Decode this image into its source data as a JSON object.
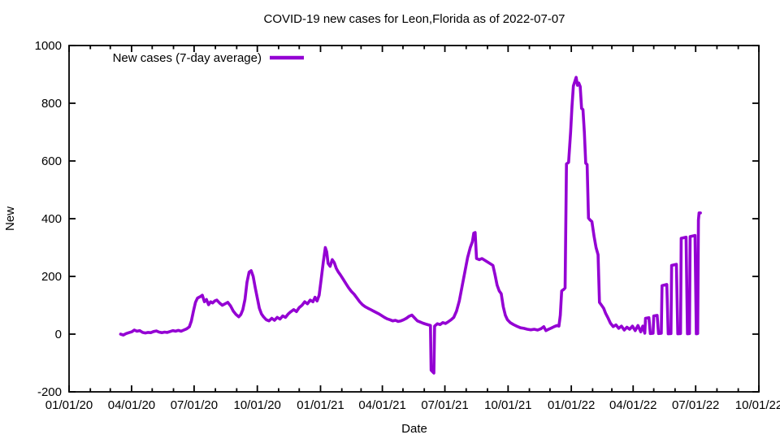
{
  "chart_data": {
    "type": "line",
    "title": "COVID-19 new cases for Leon,Florida as of 2022-07-07",
    "xlabel": "Date",
    "ylabel": "New",
    "grid": false,
    "legend": {
      "label": "New cases (7-day average)",
      "position": "top-left-inside"
    },
    "line_color": "#9400d3",
    "axis_color": "#000000",
    "ylim": [
      -200,
      1000
    ],
    "xlim": [
      "2020-01-01",
      "2022-10-01"
    ],
    "y_ticks": [
      -200,
      0,
      200,
      400,
      600,
      800,
      1000
    ],
    "x_ticks": [
      {
        "date": "2020-01-01",
        "label": "01/01/20"
      },
      {
        "date": "2020-04-01",
        "label": "04/01/20"
      },
      {
        "date": "2020-07-01",
        "label": "07/01/20"
      },
      {
        "date": "2020-10-01",
        "label": "10/01/20"
      },
      {
        "date": "2021-01-01",
        "label": "01/01/21"
      },
      {
        "date": "2021-04-01",
        "label": "04/01/21"
      },
      {
        "date": "2021-07-01",
        "label": "07/01/21"
      },
      {
        "date": "2021-10-01",
        "label": "10/01/21"
      },
      {
        "date": "2022-01-01",
        "label": "01/01/22"
      },
      {
        "date": "2022-04-01",
        "label": "04/01/22"
      },
      {
        "date": "2022-07-01",
        "label": "07/01/22"
      },
      {
        "date": "2022-10-01",
        "label": "10/01/22"
      }
    ],
    "series": [
      {
        "name": "New cases (7-day average)",
        "points": [
          [
            "2020-03-16",
            0
          ],
          [
            "2020-03-20",
            -3
          ],
          [
            "2020-03-24",
            2
          ],
          [
            "2020-03-28",
            5
          ],
          [
            "2020-04-01",
            8
          ],
          [
            "2020-04-05",
            14
          ],
          [
            "2020-04-09",
            10
          ],
          [
            "2020-04-13",
            12
          ],
          [
            "2020-04-17",
            6
          ],
          [
            "2020-04-21",
            4
          ],
          [
            "2020-04-25",
            6
          ],
          [
            "2020-04-29",
            5
          ],
          [
            "2020-05-03",
            9
          ],
          [
            "2020-05-07",
            11
          ],
          [
            "2020-05-11",
            7
          ],
          [
            "2020-05-15",
            5
          ],
          [
            "2020-05-19",
            7
          ],
          [
            "2020-05-23",
            6
          ],
          [
            "2020-05-27",
            9
          ],
          [
            "2020-05-31",
            12
          ],
          [
            "2020-06-04",
            10
          ],
          [
            "2020-06-08",
            13
          ],
          [
            "2020-06-12",
            10
          ],
          [
            "2020-06-16",
            14
          ],
          [
            "2020-06-20",
            18
          ],
          [
            "2020-06-24",
            25
          ],
          [
            "2020-06-27",
            45
          ],
          [
            "2020-06-30",
            80
          ],
          [
            "2020-07-03",
            110
          ],
          [
            "2020-07-06",
            125
          ],
          [
            "2020-07-10",
            130
          ],
          [
            "2020-07-13",
            135
          ],
          [
            "2020-07-16",
            112
          ],
          [
            "2020-07-19",
            120
          ],
          [
            "2020-07-22",
            102
          ],
          [
            "2020-07-25",
            112
          ],
          [
            "2020-07-28",
            108
          ],
          [
            "2020-07-31",
            115
          ],
          [
            "2020-08-03",
            118
          ],
          [
            "2020-08-07",
            108
          ],
          [
            "2020-08-11",
            100
          ],
          [
            "2020-08-15",
            105
          ],
          [
            "2020-08-19",
            110
          ],
          [
            "2020-08-23",
            98
          ],
          [
            "2020-08-27",
            80
          ],
          [
            "2020-08-31",
            68
          ],
          [
            "2020-09-04",
            60
          ],
          [
            "2020-09-07",
            68
          ],
          [
            "2020-09-10",
            85
          ],
          [
            "2020-09-13",
            120
          ],
          [
            "2020-09-16",
            180
          ],
          [
            "2020-09-19",
            215
          ],
          [
            "2020-09-22",
            220
          ],
          [
            "2020-09-25",
            200
          ],
          [
            "2020-09-28",
            160
          ],
          [
            "2020-10-01",
            125
          ],
          [
            "2020-10-04",
            90
          ],
          [
            "2020-10-07",
            70
          ],
          [
            "2020-10-10",
            60
          ],
          [
            "2020-10-14",
            50
          ],
          [
            "2020-10-18",
            46
          ],
          [
            "2020-10-22",
            55
          ],
          [
            "2020-10-26",
            48
          ],
          [
            "2020-10-30",
            58
          ],
          [
            "2020-11-03",
            52
          ],
          [
            "2020-11-07",
            63
          ],
          [
            "2020-11-11",
            58
          ],
          [
            "2020-11-15",
            70
          ],
          [
            "2020-11-19",
            78
          ],
          [
            "2020-11-23",
            85
          ],
          [
            "2020-11-27",
            78
          ],
          [
            "2020-12-01",
            92
          ],
          [
            "2020-12-05",
            100
          ],
          [
            "2020-12-09",
            112
          ],
          [
            "2020-12-13",
            105
          ],
          [
            "2020-12-17",
            118
          ],
          [
            "2020-12-21",
            112
          ],
          [
            "2020-12-24",
            128
          ],
          [
            "2020-12-27",
            115
          ],
          [
            "2020-12-30",
            135
          ],
          [
            "2021-01-02",
            190
          ],
          [
            "2021-01-05",
            250
          ],
          [
            "2021-01-08",
            300
          ],
          [
            "2021-01-10",
            285
          ],
          [
            "2021-01-12",
            245
          ],
          [
            "2021-01-15",
            235
          ],
          [
            "2021-01-18",
            258
          ],
          [
            "2021-01-21",
            248
          ],
          [
            "2021-01-24",
            228
          ],
          [
            "2021-01-27",
            215
          ],
          [
            "2021-01-30",
            205
          ],
          [
            "2021-02-03",
            190
          ],
          [
            "2021-02-07",
            175
          ],
          [
            "2021-02-11",
            160
          ],
          [
            "2021-02-15",
            148
          ],
          [
            "2021-02-19",
            138
          ],
          [
            "2021-02-23",
            125
          ],
          [
            "2021-02-27",
            112
          ],
          [
            "2021-03-03",
            102
          ],
          [
            "2021-03-07",
            95
          ],
          [
            "2021-03-11",
            90
          ],
          [
            "2021-03-15",
            85
          ],
          [
            "2021-03-19",
            80
          ],
          [
            "2021-03-23",
            75
          ],
          [
            "2021-03-27",
            70
          ],
          [
            "2021-03-31",
            64
          ],
          [
            "2021-04-04",
            58
          ],
          [
            "2021-04-08",
            53
          ],
          [
            "2021-04-12",
            50
          ],
          [
            "2021-04-16",
            46
          ],
          [
            "2021-04-20",
            48
          ],
          [
            "2021-04-24",
            44
          ],
          [
            "2021-04-28",
            46
          ],
          [
            "2021-05-02",
            50
          ],
          [
            "2021-05-06",
            55
          ],
          [
            "2021-05-10",
            62
          ],
          [
            "2021-05-14",
            66
          ],
          [
            "2021-05-18",
            56
          ],
          [
            "2021-05-22",
            46
          ],
          [
            "2021-05-26",
            42
          ],
          [
            "2021-05-30",
            38
          ],
          [
            "2021-06-03",
            35
          ],
          [
            "2021-06-07",
            32
          ],
          [
            "2021-06-10",
            30
          ],
          [
            "2021-06-11",
            -125
          ],
          [
            "2021-06-15",
            -135
          ],
          [
            "2021-06-16",
            28
          ],
          [
            "2021-06-20",
            36
          ],
          [
            "2021-06-24",
            33
          ],
          [
            "2021-06-28",
            40
          ],
          [
            "2021-07-02",
            37
          ],
          [
            "2021-07-06",
            43
          ],
          [
            "2021-07-10",
            50
          ],
          [
            "2021-07-14",
            58
          ],
          [
            "2021-07-18",
            80
          ],
          [
            "2021-07-22",
            115
          ],
          [
            "2021-07-26",
            165
          ],
          [
            "2021-07-30",
            215
          ],
          [
            "2021-08-03",
            265
          ],
          [
            "2021-08-07",
            300
          ],
          [
            "2021-08-10",
            320
          ],
          [
            "2021-08-12",
            350
          ],
          [
            "2021-08-14",
            352
          ],
          [
            "2021-08-16",
            262
          ],
          [
            "2021-08-20",
            258
          ],
          [
            "2021-08-24",
            262
          ],
          [
            "2021-08-28",
            256
          ],
          [
            "2021-09-01",
            250
          ],
          [
            "2021-09-05",
            244
          ],
          [
            "2021-09-09",
            238
          ],
          [
            "2021-09-12",
            205
          ],
          [
            "2021-09-15",
            170
          ],
          [
            "2021-09-18",
            150
          ],
          [
            "2021-09-21",
            140
          ],
          [
            "2021-09-24",
            95
          ],
          [
            "2021-09-27",
            65
          ],
          [
            "2021-09-30",
            50
          ],
          [
            "2021-10-04",
            40
          ],
          [
            "2021-10-09",
            33
          ],
          [
            "2021-10-14",
            27
          ],
          [
            "2021-10-19",
            22
          ],
          [
            "2021-10-24",
            20
          ],
          [
            "2021-10-29",
            17
          ],
          [
            "2021-11-03",
            15
          ],
          [
            "2021-11-08",
            17
          ],
          [
            "2021-11-13",
            14
          ],
          [
            "2021-11-18",
            19
          ],
          [
            "2021-11-22",
            26
          ],
          [
            "2021-11-25",
            12
          ],
          [
            "2021-11-29",
            17
          ],
          [
            "2021-12-03",
            21
          ],
          [
            "2021-12-07",
            26
          ],
          [
            "2021-12-11",
            30
          ],
          [
            "2021-12-14",
            28
          ],
          [
            "2021-12-16",
            65
          ],
          [
            "2021-12-18",
            150
          ],
          [
            "2021-12-21",
            155
          ],
          [
            "2021-12-23",
            160
          ],
          [
            "2021-12-25",
            590
          ],
          [
            "2021-12-28",
            595
          ],
          [
            "2021-12-31",
            700
          ],
          [
            "2022-01-02",
            790
          ],
          [
            "2022-01-04",
            860
          ],
          [
            "2022-01-06",
            875
          ],
          [
            "2022-01-08",
            890
          ],
          [
            "2022-01-10",
            862
          ],
          [
            "2022-01-12",
            870
          ],
          [
            "2022-01-14",
            858
          ],
          [
            "2022-01-16",
            782
          ],
          [
            "2022-01-18",
            778
          ],
          [
            "2022-01-20",
            700
          ],
          [
            "2022-01-22",
            592
          ],
          [
            "2022-01-24",
            588
          ],
          [
            "2022-01-26",
            402
          ],
          [
            "2022-01-28",
            396
          ],
          [
            "2022-01-31",
            390
          ],
          [
            "2022-02-03",
            340
          ],
          [
            "2022-02-06",
            300
          ],
          [
            "2022-02-09",
            275
          ],
          [
            "2022-02-11",
            110
          ],
          [
            "2022-02-14",
            100
          ],
          [
            "2022-02-17",
            90
          ],
          [
            "2022-02-20",
            72
          ],
          [
            "2022-02-23",
            58
          ],
          [
            "2022-02-27",
            38
          ],
          [
            "2022-03-03",
            26
          ],
          [
            "2022-03-07",
            32
          ],
          [
            "2022-03-11",
            20
          ],
          [
            "2022-03-15",
            28
          ],
          [
            "2022-03-19",
            14
          ],
          [
            "2022-03-23",
            24
          ],
          [
            "2022-03-27",
            17
          ],
          [
            "2022-03-31",
            28
          ],
          [
            "2022-04-04",
            12
          ],
          [
            "2022-04-08",
            30
          ],
          [
            "2022-04-12",
            8
          ],
          [
            "2022-04-15",
            28
          ],
          [
            "2022-04-18",
            3
          ],
          [
            "2022-04-19",
            55
          ],
          [
            "2022-04-24",
            57
          ],
          [
            "2022-04-26",
            2
          ],
          [
            "2022-04-30",
            3
          ],
          [
            "2022-05-01",
            63
          ],
          [
            "2022-05-06",
            65
          ],
          [
            "2022-05-08",
            2
          ],
          [
            "2022-05-12",
            3
          ],
          [
            "2022-05-13",
            168
          ],
          [
            "2022-05-20",
            172
          ],
          [
            "2022-05-22",
            1
          ],
          [
            "2022-05-26",
            2
          ],
          [
            "2022-05-27",
            238
          ],
          [
            "2022-06-03",
            242
          ],
          [
            "2022-06-05",
            1
          ],
          [
            "2022-06-09",
            2
          ],
          [
            "2022-06-10",
            332
          ],
          [
            "2022-06-17",
            336
          ],
          [
            "2022-06-19",
            1
          ],
          [
            "2022-06-22",
            2
          ],
          [
            "2022-06-23",
            338
          ],
          [
            "2022-06-30",
            342
          ],
          [
            "2022-07-02",
            1
          ],
          [
            "2022-07-04",
            2
          ],
          [
            "2022-07-05",
            395
          ],
          [
            "2022-07-06",
            420
          ],
          [
            "2022-07-08",
            420
          ]
        ]
      }
    ]
  }
}
